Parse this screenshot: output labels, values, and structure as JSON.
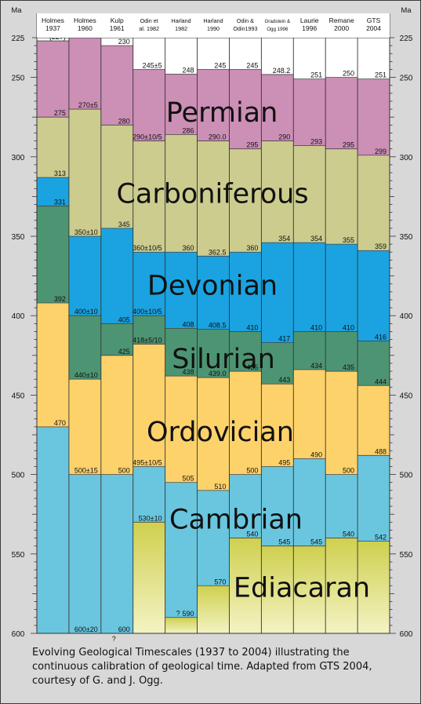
{
  "chart_data": {
    "type": "table",
    "title": "",
    "unit_label": "Ma",
    "ylim": [
      225,
      600
    ],
    "ticks": [
      225,
      250,
      300,
      350,
      400,
      450,
      500,
      550,
      600
    ],
    "columns": [
      {
        "name": "Holmes 1937",
        "lines": [
          "Holmes",
          "1937"
        ],
        "small": false,
        "boundaries": [
          {
            "value": 227,
            "label": "(227)"
          },
          {
            "value": 275,
            "label": "275"
          },
          {
            "value": 313,
            "label": "313"
          },
          {
            "value": 331,
            "label": "331"
          },
          {
            "value": 392,
            "label": "392"
          },
          {
            "value": 470,
            "label": "470"
          }
        ],
        "extra": []
      },
      {
        "name": "Holmes 1960",
        "lines": [
          "Holmes",
          "1960"
        ],
        "small": false,
        "boundaries": [
          {
            "value": 225,
            "label": "(225)"
          },
          {
            "value": 270,
            "label": "270±5"
          },
          {
            "value": 350,
            "label": "350±10"
          },
          {
            "value": 400,
            "label": "400±10"
          },
          {
            "value": 440,
            "label": "440±10"
          },
          {
            "value": 500,
            "label": "500±15"
          },
          {
            "value": 600,
            "label": "600±20"
          }
        ],
        "extra": []
      },
      {
        "name": "Kulp 1961",
        "lines": [
          "Kulp",
          "1961"
        ],
        "small": false,
        "boundaries": [
          {
            "value": 230,
            "label": "230"
          },
          {
            "value": 280,
            "label": "280"
          },
          {
            "value": 345,
            "label": "345"
          },
          {
            "value": 405,
            "label": "405"
          },
          {
            "value": 425,
            "label": "425"
          },
          {
            "value": 500,
            "label": "500"
          },
          {
            "value": 600,
            "label": "600"
          }
        ],
        "extra": [
          {
            "value": 601,
            "label": "?"
          }
        ]
      },
      {
        "name": "Odin et al. 1982",
        "lines": [
          "Odin et",
          "al. 1982"
        ],
        "small": true,
        "boundaries": [
          {
            "value": 245,
            "label": "245±5"
          },
          {
            "value": 290,
            "label": "290±10/5"
          },
          {
            "value": 360,
            "label": "360±10/5"
          },
          {
            "value": 400,
            "label": "400±10/5"
          },
          {
            "value": 418,
            "label": "418±5/10"
          },
          {
            "value": 495,
            "label": "495±10/5"
          },
          {
            "value": 530,
            "label": "530±10"
          }
        ],
        "extra": []
      },
      {
        "name": "Harland 1982",
        "lines": [
          "Harland",
          "1982"
        ],
        "small": true,
        "boundaries": [
          {
            "value": 248,
            "label": "248"
          },
          {
            "value": 286,
            "label": "286"
          },
          {
            "value": 360,
            "label": "360"
          },
          {
            "value": 408,
            "label": "408"
          },
          {
            "value": 438,
            "label": "438"
          },
          {
            "value": 505,
            "label": "505"
          },
          {
            "value": 590,
            "label": "590"
          }
        ],
        "extra": [
          {
            "value": 585,
            "label": "?"
          }
        ]
      },
      {
        "name": "Harland 1990",
        "lines": [
          "Harland",
          "1990"
        ],
        "small": true,
        "boundaries": [
          {
            "value": 245,
            "label": "245"
          },
          {
            "value": 290,
            "label": "290.0"
          },
          {
            "value": 362.5,
            "label": "362.5"
          },
          {
            "value": 408.5,
            "label": "408.5"
          },
          {
            "value": 439,
            "label": "439.0"
          },
          {
            "value": 510,
            "label": "510"
          },
          {
            "value": 570,
            "label": "570"
          }
        ],
        "extra": []
      },
      {
        "name": "Odin & Odin1993",
        "lines": [
          "Odin &",
          "Odin1993"
        ],
        "small": true,
        "boundaries": [
          {
            "value": 245,
            "label": "245"
          },
          {
            "value": 295,
            "label": "295"
          },
          {
            "value": 360,
            "label": "360"
          },
          {
            "value": 410,
            "label": "410"
          },
          {
            "value": 435,
            "label": "435"
          },
          {
            "value": 500,
            "label": "500"
          },
          {
            "value": 540,
            "label": "540"
          }
        ],
        "extra": []
      },
      {
        "name": "Gradstein & Ogg 1996",
        "lines": [
          "Gradstein &",
          "Ogg 1996"
        ],
        "small": true,
        "boundaries": [
          {
            "value": 248.2,
            "label": "248.2"
          },
          {
            "value": 290,
            "label": "290"
          },
          {
            "value": 354,
            "label": "354"
          },
          {
            "value": 417,
            "label": "417"
          },
          {
            "value": 443,
            "label": "443"
          },
          {
            "value": 495,
            "label": "495"
          },
          {
            "value": 545,
            "label": "545"
          }
        ],
        "extra": []
      },
      {
        "name": "Laurie 1996",
        "lines": [
          "Laurie",
          "1996"
        ],
        "small": false,
        "boundaries": [
          {
            "value": 251,
            "label": "251"
          },
          {
            "value": 293,
            "label": "293"
          },
          {
            "value": 354,
            "label": "354"
          },
          {
            "value": 410,
            "label": "410"
          },
          {
            "value": 434,
            "label": "434"
          },
          {
            "value": 490,
            "label": "490"
          },
          {
            "value": 545,
            "label": "545"
          }
        ],
        "extra": []
      },
      {
        "name": "Remane 2000",
        "lines": [
          "Remane",
          "2000"
        ],
        "small": false,
        "boundaries": [
          {
            "value": 250,
            "label": "250"
          },
          {
            "value": 295,
            "label": "295"
          },
          {
            "value": 355,
            "label": "355"
          },
          {
            "value": 410,
            "label": "410"
          },
          {
            "value": 435,
            "label": "435"
          },
          {
            "value": 500,
            "label": "500"
          },
          {
            "value": 540,
            "label": "540"
          }
        ],
        "extra": []
      },
      {
        "name": "GTS 2004",
        "lines": [
          "GTS",
          "2004"
        ],
        "small": false,
        "boundaries": [
          {
            "value": 251,
            "label": "251"
          },
          {
            "value": 299,
            "label": "299"
          },
          {
            "value": 359,
            "label": "359"
          },
          {
            "value": 416,
            "label": "416"
          },
          {
            "value": 444,
            "label": "444"
          },
          {
            "value": 488,
            "label": "488"
          },
          {
            "value": 542,
            "label": "542"
          }
        ],
        "extra": []
      }
    ],
    "periods": [
      {
        "name": "Permian",
        "value": 272,
        "color": "#cc8fb5"
      },
      {
        "name": "Carboniferous",
        "value": 323,
        "color": "#cccc8f"
      },
      {
        "name": "Devonian",
        "value": 381,
        "color": "#1aa3e0"
      },
      {
        "name": "Silurian",
        "value": 427,
        "color": "#4d9473"
      },
      {
        "name": "Ordovician",
        "value": 473,
        "color": "#fdd26b"
      },
      {
        "name": "Cambrian",
        "value": 528,
        "color": "#6ac6df"
      },
      {
        "name": "Ediacaran",
        "value": 571,
        "color": "#d4d656"
      }
    ]
  },
  "caption": "Evolving Geological Timescales (1937 to 2004) illustrating the continuous calibration of geological time.  Adapted from GTS 2004, courtesy of G. and J. Ogg."
}
